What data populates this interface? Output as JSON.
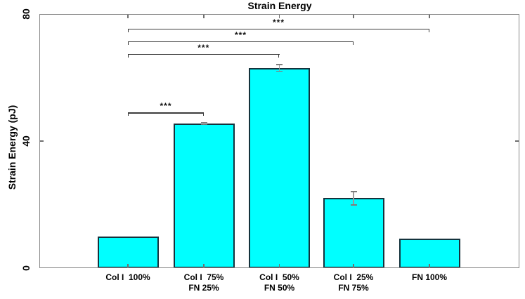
{
  "chart_data": {
    "type": "bar",
    "title": "Strain Energy",
    "ylabel": "Strain Energy (pJ)",
    "xlabel": "",
    "categories": [
      "Col I  100%",
      "Col I  75%\nFN 25%",
      "Col I  50%\nFN 50%",
      "Col I  25%\nFN 75%",
      "FN 100%"
    ],
    "values": [
      10,
      45.5,
      63,
      22,
      9.3
    ],
    "errors_pJ": [
      0,
      0.5,
      1.2,
      2.3,
      0
    ],
    "ylim": [
      0,
      80
    ],
    "yticks": [
      80,
      40,
      0
    ],
    "grid": false,
    "legend": null,
    "bar_color": "#00ffff",
    "bar_edge_color": "#14333d",
    "error_bar_color": "#8c8c8c",
    "axis_color": "#878787",
    "significance_brackets": [
      {
        "between": [
          "Col I  100%",
          "FN 100%"
        ],
        "from_index": 0,
        "to_index": 4,
        "label": "***",
        "height_pJ": 75.4
      },
      {
        "between": [
          "Col I  100%",
          "Col I  25% FN 75%"
        ],
        "from_index": 0,
        "to_index": 3,
        "label": "***",
        "height_pJ": 71.4
      },
      {
        "between": [
          "Col I  100%",
          "Col I  50% FN 50%"
        ],
        "from_index": 0,
        "to_index": 2,
        "label": "***",
        "height_pJ": 67.4
      },
      {
        "between": [
          "Col I  100%",
          "Col I  75% FN 25%"
        ],
        "from_index": 0,
        "to_index": 1,
        "label": "***",
        "height_pJ": 49
      }
    ]
  }
}
